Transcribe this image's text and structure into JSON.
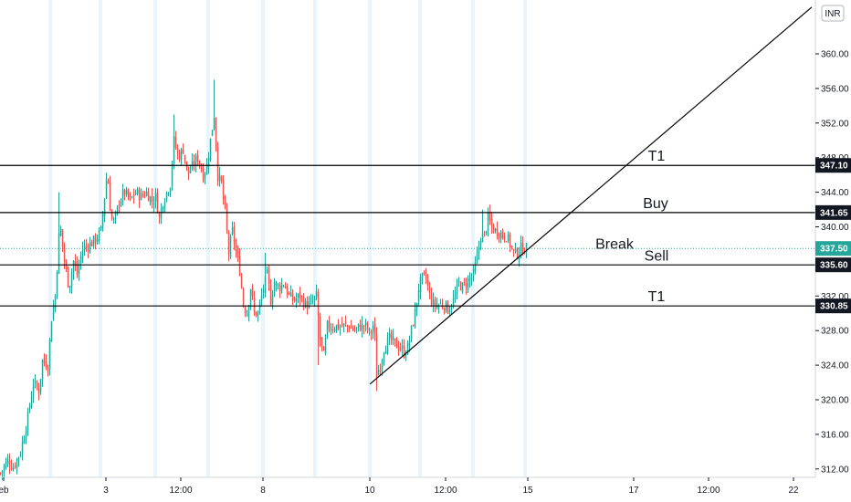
{
  "currency_badge": "INR",
  "chart_data": {
    "type": "candlestick",
    "y_axis": {
      "range": [
        311,
        365
      ],
      "ticks": [
        "312.00",
        "316.00",
        "320.00",
        "324.00",
        "328.00",
        "332.00",
        "336.00",
        "340.00",
        "344.00",
        "348.00",
        "352.00",
        "356.00",
        "360.00"
      ]
    },
    "x_axis": {
      "ticks": [
        {
          "label": "eb",
          "px": 4
        },
        {
          "label": "3",
          "px": 116
        },
        {
          "label": "12:00",
          "px": 198
        },
        {
          "label": "8",
          "px": 288
        },
        {
          "label": "10",
          "px": 405
        },
        {
          "label": "12:00",
          "px": 488
        },
        {
          "label": "15",
          "px": 578
        },
        {
          "label": "17",
          "px": 694
        },
        {
          "label": "12:00",
          "px": 776
        },
        {
          "label": "22",
          "px": 869
        }
      ]
    },
    "current_price": {
      "value": 337.5,
      "label": "337.50",
      "color": "#26a69a"
    },
    "levels": [
      {
        "name": "T1",
        "value": 347.1,
        "label": "347.10"
      },
      {
        "name": "Buy",
        "value": 341.65,
        "label": "341.65"
      },
      {
        "name": "Sell",
        "value": 335.6,
        "label": "335.60"
      },
      {
        "name": "T1",
        "value": 330.85,
        "label": "330.85"
      }
    ],
    "annotations": [
      {
        "text": "T1",
        "price": 348.2
      },
      {
        "text": "Buy",
        "price": 342.7
      },
      {
        "text": "Break",
        "price": 338.0
      },
      {
        "text": "Sell",
        "price": 336.6
      },
      {
        "text": "T1",
        "price": 331.9
      }
    ],
    "trendline": {
      "from": {
        "time": "10",
        "price": 321.8
      },
      "to": {
        "time": "22",
        "price": 365.4
      }
    },
    "colors": {
      "up": "#26a69a",
      "down": "#ef5350",
      "line": "#000000",
      "session": "#e3f2fd"
    },
    "close_path": [
      [
        0,
        311.5
      ],
      [
        8,
        313
      ],
      [
        14,
        312.2
      ],
      [
        22,
        314
      ],
      [
        30,
        318
      ],
      [
        36,
        322
      ],
      [
        42,
        321
      ],
      [
        46,
        324.5
      ],
      [
        52,
        324
      ],
      [
        56,
        329.5
      ],
      [
        60,
        332
      ],
      [
        65,
        340.5
      ],
      [
        70,
        336
      ],
      [
        75,
        333
      ],
      [
        80,
        336
      ],
      [
        84,
        334.5
      ],
      [
        90,
        337.5
      ],
      [
        98,
        338
      ],
      [
        104,
        338.5
      ],
      [
        110,
        339.5
      ],
      [
        117,
        346.5
      ],
      [
        121,
        341
      ],
      [
        125,
        340.5
      ],
      [
        130,
        343
      ],
      [
        136,
        344
      ],
      [
        142,
        343
      ],
      [
        148,
        344
      ],
      [
        154,
        343.5
      ],
      [
        160,
        344
      ],
      [
        166,
        343
      ],
      [
        170,
        343.5
      ],
      [
        174,
        341
      ],
      [
        178,
        343
      ],
      [
        182,
        344
      ],
      [
        186,
        345
      ],
      [
        190,
        350
      ],
      [
        195,
        348
      ],
      [
        200,
        349
      ],
      [
        205,
        346
      ],
      [
        210,
        347
      ],
      [
        216,
        348
      ],
      [
        222,
        346
      ],
      [
        226,
        347
      ],
      [
        230,
        350
      ],
      [
        234,
        353
      ],
      [
        238,
        346
      ],
      [
        242,
        345
      ],
      [
        246,
        341.5
      ],
      [
        250,
        337
      ],
      [
        254,
        339.5
      ],
      [
        258,
        337
      ],
      [
        262,
        335
      ],
      [
        266,
        331
      ],
      [
        270,
        330
      ],
      [
        274,
        333
      ],
      [
        278,
        330
      ],
      [
        282,
        330
      ],
      [
        286,
        332
      ],
      [
        292,
        334.5
      ],
      [
        296,
        331.5
      ],
      [
        300,
        333.5
      ],
      [
        305,
        333
      ],
      [
        310,
        333.5
      ],
      [
        316,
        332
      ],
      [
        322,
        331.5
      ],
      [
        328,
        332
      ],
      [
        334,
        331
      ],
      [
        340,
        331
      ],
      [
        346,
        332
      ],
      [
        350,
        327
      ],
      [
        354,
        325
      ],
      [
        358,
        328.5
      ],
      [
        364,
        328.5
      ],
      [
        370,
        328.5
      ],
      [
        376,
        328.5
      ],
      [
        382,
        328.5
      ],
      [
        388,
        328
      ],
      [
        394,
        328.5
      ],
      [
        400,
        328.5
      ],
      [
        405,
        327.5
      ],
      [
        409,
        329
      ],
      [
        412,
        323
      ],
      [
        416,
        324
      ],
      [
        420,
        326
      ],
      [
        426,
        327
      ],
      [
        432,
        326.5
      ],
      [
        438,
        326
      ],
      [
        442,
        325.5
      ],
      [
        446,
        326
      ],
      [
        450,
        328
      ],
      [
        454,
        330
      ],
      [
        458,
        333
      ],
      [
        462,
        334
      ],
      [
        466,
        334
      ],
      [
        470,
        332
      ],
      [
        474,
        331
      ],
      [
        478,
        331
      ],
      [
        482,
        331
      ],
      [
        486,
        331
      ],
      [
        490,
        330.5
      ],
      [
        494,
        331
      ],
      [
        498,
        332
      ],
      [
        502,
        333.5
      ],
      [
        506,
        333
      ],
      [
        510,
        333.5
      ],
      [
        514,
        334
      ],
      [
        518,
        334.5
      ],
      [
        522,
        336.5
      ],
      [
        526,
        339
      ],
      [
        530,
        339
      ],
      [
        534,
        341
      ],
      [
        538,
        340
      ],
      [
        542,
        339.5
      ],
      [
        546,
        339.5
      ],
      [
        550,
        339
      ],
      [
        554,
        339
      ],
      [
        558,
        338
      ],
      [
        562,
        337
      ],
      [
        566,
        337
      ],
      [
        570,
        337.5
      ],
      [
        575,
        337.5
      ]
    ]
  }
}
